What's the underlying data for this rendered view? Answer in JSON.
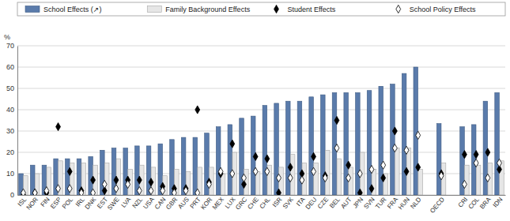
{
  "chart_data": {
    "type": "bar",
    "y_label": "%",
    "categories": [
      "ISL",
      "NOR",
      "FIN",
      "ESP",
      "POL",
      "IRL",
      "DNK",
      "EST",
      "SWE",
      "LVA",
      "NZL",
      "USA",
      "CAN",
      "GBR",
      "AUS",
      "PRT",
      "KOR",
      "MEX",
      "LUX",
      "GRC",
      "CHE",
      "CHL",
      "ISR",
      "SVK",
      "ITA",
      "DEU",
      "CZE",
      "BEL",
      "AUT",
      "JPN",
      "SVN",
      "TUR",
      "FRA",
      "HUN",
      "NLD",
      null,
      "OECD",
      null,
      "CRI",
      "COL",
      "BRA",
      "IDN"
    ],
    "series": [
      {
        "name": "School Effects (↗)",
        "type": "bar",
        "color": "#5a7bab",
        "values": [
          10,
          14,
          14,
          17,
          17,
          17,
          18,
          21,
          22,
          22,
          23,
          23,
          24,
          26,
          27,
          27,
          29,
          32,
          33,
          36,
          37,
          42,
          43,
          44,
          44,
          46,
          47,
          48,
          48,
          48,
          49,
          51,
          52,
          57,
          60,
          null,
          33.5,
          null,
          32,
          33,
          44,
          48
        ]
      },
      {
        "name": "Family Background Effects",
        "type": "bar",
        "color": "#e6e6e6",
        "values": [
          9,
          10,
          13,
          16,
          15,
          15,
          14,
          15,
          17,
          12,
          14,
          13,
          9,
          12,
          11,
          13,
          13,
          10,
          20,
          12,
          11,
          14,
          13,
          19,
          15,
          15,
          21,
          17,
          13,
          20,
          12,
          10,
          22,
          22,
          12,
          null,
          15,
          null,
          14,
          14,
          15,
          16
        ]
      },
      {
        "name": "Student Effects",
        "type": "scatter",
        "marker": "diamond",
        "color": "#000000",
        "values": [
          0,
          1,
          1,
          32,
          11,
          2,
          7,
          2,
          7,
          7,
          7,
          6,
          4,
          3,
          3,
          40,
          6,
          10,
          24,
          5,
          18,
          17,
          1,
          13,
          10,
          18,
          9,
          35,
          14,
          1,
          3,
          8,
          30,
          11,
          13,
          null,
          10,
          null,
          19,
          19,
          20,
          12
        ]
      },
      {
        "name": "School Policy Effects",
        "type": "scatter",
        "marker": "diamond",
        "color": "#ffffff",
        "values": [
          1,
          1,
          2,
          3,
          3,
          1,
          1,
          5,
          3,
          5,
          2,
          2,
          2,
          1,
          2,
          1,
          5,
          11,
          10,
          8,
          11,
          11,
          8,
          8,
          7,
          11,
          8,
          22,
          8,
          10,
          12,
          14,
          22,
          21,
          28,
          null,
          9,
          null,
          5,
          15,
          8,
          15
        ]
      }
    ],
    "ylim": [
      0,
      70
    ],
    "yticks": [
      0,
      10,
      20,
      30,
      40,
      50,
      60,
      70
    ],
    "grid": true,
    "legend": "top"
  }
}
